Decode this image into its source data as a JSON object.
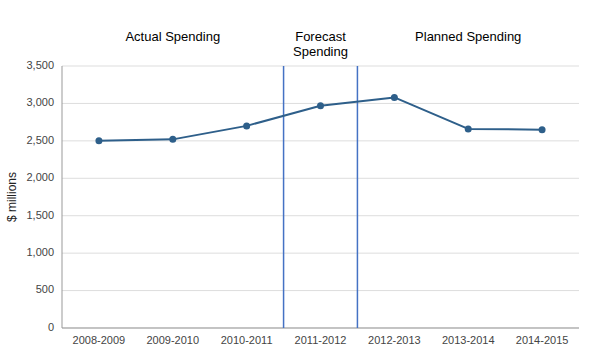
{
  "chart_data": {
    "type": "line",
    "y_label": "$ millions",
    "categories": [
      "2008-2009",
      "2009-2010",
      "2010-2011",
      "2011-2012",
      "2012-2013",
      "2013-2014",
      "2014-2015"
    ],
    "values": [
      2500,
      2520,
      2700,
      2970,
      3080,
      2660,
      2650
    ],
    "color": "#2E5F8A",
    "marker": "circle",
    "ylim": [
      0,
      3500
    ],
    "yticks": [
      0,
      500,
      {
        "value": 1000,
        "label": "1,000"
      },
      {
        "value": 1500,
        "label": "1,500"
      },
      {
        "value": 2000,
        "label": "2,000"
      },
      {
        "value": 2500,
        "label": "2,500"
      },
      {
        "value": 3000,
        "label": "3,000"
      },
      {
        "value": 3500,
        "label": "3,500"
      }
    ],
    "grid": true,
    "reference_lines": [
      {
        "x": 2.5,
        "color": "#4472C4"
      },
      {
        "x": 3.5,
        "color": "#4472C4"
      }
    ],
    "annotations": [
      {
        "text": "Actual Spending",
        "x": 1
      },
      {
        "text": "Forecast\nSpending",
        "x": 3
      },
      {
        "text": "Planned Spending",
        "x": 5
      }
    ]
  }
}
